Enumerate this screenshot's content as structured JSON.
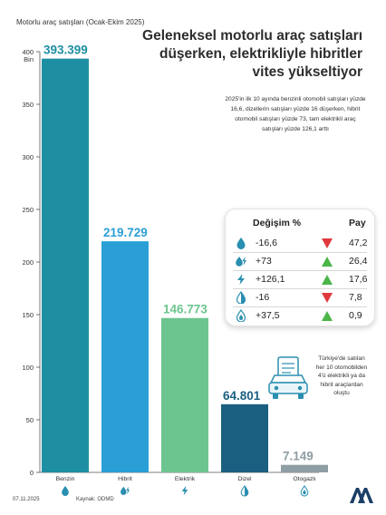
{
  "chart_data": {
    "type": "bar",
    "title": "Geleneksel motorlu araç satışları düşerken, elektrikliyle hibritler vites yükseltiyor",
    "ylabel": "Motorlu araç satışları (Ocak-Ekim 2025)",
    "yunit": "Bin",
    "ylim": [
      0,
      400
    ],
    "yticks": [
      0,
      50,
      100,
      150,
      200,
      250,
      300,
      350,
      400
    ],
    "grid": false,
    "categories": [
      "Benzin",
      "Hibrit",
      "Elektrik",
      "Dizel",
      "Otogazlı"
    ],
    "values": [
      393.399,
      219.729,
      146.773,
      64.801,
      7.149
    ],
    "value_labels": [
      "393.399",
      "219.729",
      "146.773",
      "64.801",
      "7.149"
    ],
    "colors": [
      "#1e8fa3",
      "#2a9fd6",
      "#6cc58e",
      "#1b5f80",
      "#8f9da4"
    ],
    "category_icons": [
      "drop-icon",
      "hybrid-icon",
      "bolt-icon",
      "drop-half-icon",
      "gas-drop-icon"
    ]
  },
  "summary": "2025'in ilk 10 ayında benzinli otomobil satışları yüzde 16,6, dizellerin satışları yüzde 16 düşerken, hibrit otomobil satışları yüzde 73, tam elektrikli araç satışları yüzde 126,1 arttı",
  "table": {
    "col_change": "Değişim %",
    "col_share": "Pay",
    "rows": [
      {
        "icon": "drop-icon",
        "change": "-16,6",
        "trend": "down",
        "share": "47,2"
      },
      {
        "icon": "hybrid-icon",
        "change": "+73",
        "trend": "up",
        "share": "26,4"
      },
      {
        "icon": "bolt-icon",
        "change": "+126,1",
        "trend": "up",
        "share": "17,6"
      },
      {
        "icon": "drop-half-icon",
        "change": "-16",
        "trend": "down",
        "share": "7,8"
      },
      {
        "icon": "gas-drop-icon",
        "change": "+37,5",
        "trend": "up",
        "share": "0,9"
      }
    ]
  },
  "note": "Türkiye'de satılan her 10 otomobilden 4'ü elektrikli ya da hibrit araçlardan oluştu",
  "footer": {
    "date": "07.11.2025",
    "source": "Kaynak: ODMD"
  },
  "colors": {
    "up": "#4cb648",
    "down": "#e0393e",
    "icon": "#2a8fb0"
  }
}
